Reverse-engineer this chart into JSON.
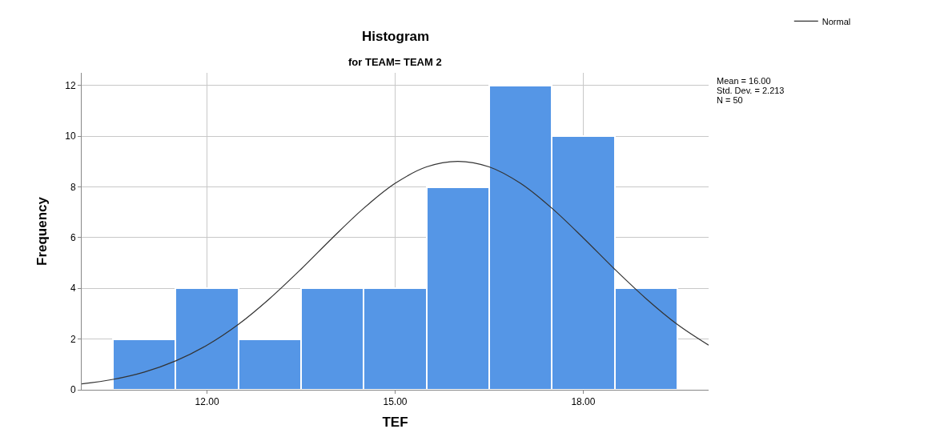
{
  "chart_data": {
    "type": "histogram",
    "title": "Histogram",
    "subtitle": "for TEAM= TEAM 2",
    "xlabel": "TEF",
    "ylabel": "Frequency",
    "bins": [
      10.5,
      11.5,
      12.5,
      13.5,
      14.5,
      15.5,
      16.5,
      17.5,
      18.5,
      19.5
    ],
    "values": [
      2,
      4,
      2,
      4,
      4,
      8,
      12,
      10,
      4
    ],
    "color": "#5596e6",
    "series": [
      {
        "type": "line",
        "name": "Normal",
        "color": "#333333",
        "x": [
          10,
          10.5,
          11,
          11.5,
          12,
          12.5,
          13,
          13.5,
          14,
          14.5,
          15,
          15.5,
          16,
          16.5,
          17,
          17.5,
          18,
          18.5,
          19,
          19.5,
          20
        ],
        "values": [
          0.23,
          0.41,
          0.7,
          1.14,
          1.76,
          2.58,
          3.6,
          4.76,
          5.99,
          7.16,
          8.14,
          8.79,
          9.01,
          8.79,
          8.14,
          7.16,
          5.99,
          4.76,
          3.6,
          2.58,
          1.76
        ]
      }
    ],
    "xlim": [
      10,
      20
    ],
    "xticks": [
      {
        "value": 12,
        "label": "12.00"
      },
      {
        "value": 15,
        "label": "15.00"
      },
      {
        "value": 18,
        "label": "18.00"
      }
    ],
    "ylim": [
      0,
      12.5
    ],
    "yticks": [
      0,
      2,
      4,
      6,
      8,
      10,
      12
    ],
    "annotations": [
      "Mean = 16.00",
      "Std. Dev. = 2.213",
      "N = 50"
    ],
    "grid": true,
    "legend": "top right",
    "marker": "none",
    "line_style": "solid"
  }
}
